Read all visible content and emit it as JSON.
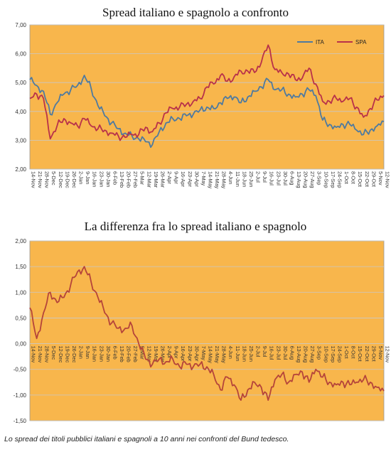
{
  "caption": "Lo spread dei titoli pubblici italiani e spagnoli a 10 anni nei confronti del Bund tedesco.",
  "colors": {
    "plot_bg": "#F8B64C",
    "ita": "#4E7AA0",
    "spa": "#B8314A",
    "diff": "#B5443A",
    "grid": "#C8C8C8"
  },
  "chart_data": [
    {
      "type": "line",
      "title": "Spread italiano e spagnolo a confronto",
      "xlabel": "",
      "ylabel": "",
      "ylim": [
        2.0,
        7.0
      ],
      "yticks": [
        "2,00",
        "3,00",
        "4,00",
        "5,00",
        "6,00",
        "7,00"
      ],
      "legend": "top-right",
      "categories": [
        "14-Nov",
        "21-Nov",
        "28-Nov",
        "5-Dec",
        "12-Dec",
        "19-Dec",
        "26-Dec",
        "2-Jan",
        "9-Jan",
        "16-Jan",
        "23-Jan",
        "30-Jan",
        "6-Feb",
        "13-Feb",
        "20-Feb",
        "27-Feb",
        "5-Mar",
        "12-Mar",
        "19-Mar",
        "26-Mar",
        "2-Apr",
        "9-Apr",
        "16-Apr",
        "23-Apr",
        "30-Apr",
        "7-May",
        "14-May",
        "21-May",
        "28-May",
        "4-Jun",
        "11-Jun",
        "18-Jun",
        "25-Jun",
        "2-Jul",
        "9-Jul",
        "16-Jul",
        "23-Jul",
        "30-Jul",
        "6-Aug",
        "13-Aug",
        "20-Aug",
        "27-Aug",
        "3-Sep",
        "10-Sep",
        "17-Sep",
        "24-Sep",
        "1-Oct",
        "8-Oct",
        "15-Oct",
        "22-Oct",
        "29-Oct",
        "5-Nov",
        "12-Nov"
      ],
      "series": [
        {
          "name": "ITA",
          "values": [
            5.1,
            4.9,
            4.7,
            3.9,
            4.3,
            4.6,
            4.75,
            4.9,
            5.25,
            4.8,
            4.2,
            3.85,
            3.6,
            3.4,
            3.25,
            3.15,
            3.05,
            2.95,
            2.85,
            3.3,
            3.6,
            3.75,
            3.75,
            3.85,
            3.9,
            4.05,
            4.15,
            4.1,
            4.3,
            4.45,
            4.5,
            4.3,
            4.5,
            4.7,
            4.85,
            5.1,
            4.75,
            4.75,
            4.6,
            4.5,
            4.6,
            4.75,
            4.55,
            3.7,
            3.55,
            3.45,
            3.55,
            3.55,
            3.35,
            3.2,
            3.35,
            3.5,
            3.65
          ]
        },
        {
          "name": "SPA",
          "values": [
            4.45,
            4.6,
            4.45,
            3.05,
            3.5,
            3.75,
            3.6,
            3.5,
            3.75,
            3.5,
            3.4,
            3.35,
            3.25,
            3.15,
            3.1,
            3.2,
            3.2,
            3.45,
            3.3,
            3.6,
            3.95,
            4.1,
            4.15,
            4.25,
            4.35,
            4.45,
            4.85,
            4.95,
            5.25,
            5.05,
            5.2,
            5.4,
            5.4,
            5.35,
            5.7,
            6.3,
            5.45,
            5.35,
            5.3,
            5.1,
            5.15,
            5.5,
            4.95,
            4.35,
            4.35,
            4.45,
            4.35,
            4.45,
            4.15,
            3.8,
            4.1,
            4.4,
            4.55
          ]
        }
      ]
    },
    {
      "type": "line",
      "title": "La differenza fra lo spread italiano e spagnolo",
      "xlabel": "",
      "ylabel": "",
      "ylim": [
        -1.5,
        2.0
      ],
      "yticks": [
        "-1,50",
        "-1,00",
        "-0,50",
        "0,00",
        "0,50",
        "1,00",
        "1,50",
        "2,00"
      ],
      "categories": [
        "14-Nov",
        "21-Nov",
        "28-Nov",
        "5-Dec",
        "12-Dec",
        "19-Dec",
        "26-Dec",
        "2-Jan",
        "9-Jan",
        "16-Jan",
        "23-Jan",
        "30-Jan",
        "6-Feb",
        "13-Feb",
        "20-Feb",
        "27-Feb",
        "5-Mar",
        "12-Mar",
        "19-Mar",
        "26-Mar",
        "2-Apr",
        "9-Apr",
        "16-Apr",
        "23-Apr",
        "30-Apr",
        "7-May",
        "14-May",
        "21-May",
        "28-May",
        "4-Jun",
        "11-Jun",
        "18-Jun",
        "25-Jun",
        "2-Jul",
        "9-Jul",
        "16-Jul",
        "23-Jul",
        "30-Jul",
        "6-Aug",
        "13-Aug",
        "20-Aug",
        "27-Aug",
        "3-Sep",
        "10-Sep",
        "17-Sep",
        "24-Sep",
        "1-Oct",
        "8-Oct",
        "15-Oct",
        "22-Oct",
        "29-Oct",
        "5-Nov",
        "12-Nov"
      ],
      "series": [
        {
          "name": "",
          "values": [
            0.7,
            0.1,
            0.6,
            1.0,
            0.8,
            0.9,
            1.15,
            1.4,
            1.5,
            1.2,
            0.9,
            0.6,
            0.4,
            0.3,
            0.3,
            0.35,
            0.0,
            -0.3,
            -0.4,
            -0.3,
            -0.35,
            -0.3,
            -0.45,
            -0.4,
            -0.45,
            -0.4,
            -0.45,
            -0.6,
            -0.9,
            -0.65,
            -0.8,
            -1.1,
            -0.9,
            -0.75,
            -0.85,
            -1.1,
            -0.7,
            -0.6,
            -0.75,
            -0.6,
            -0.55,
            -0.75,
            -0.5,
            -0.65,
            -0.75,
            -0.8,
            -0.75,
            -0.8,
            -0.75,
            -0.7,
            -0.75,
            -0.85,
            -0.92
          ]
        }
      ]
    }
  ]
}
